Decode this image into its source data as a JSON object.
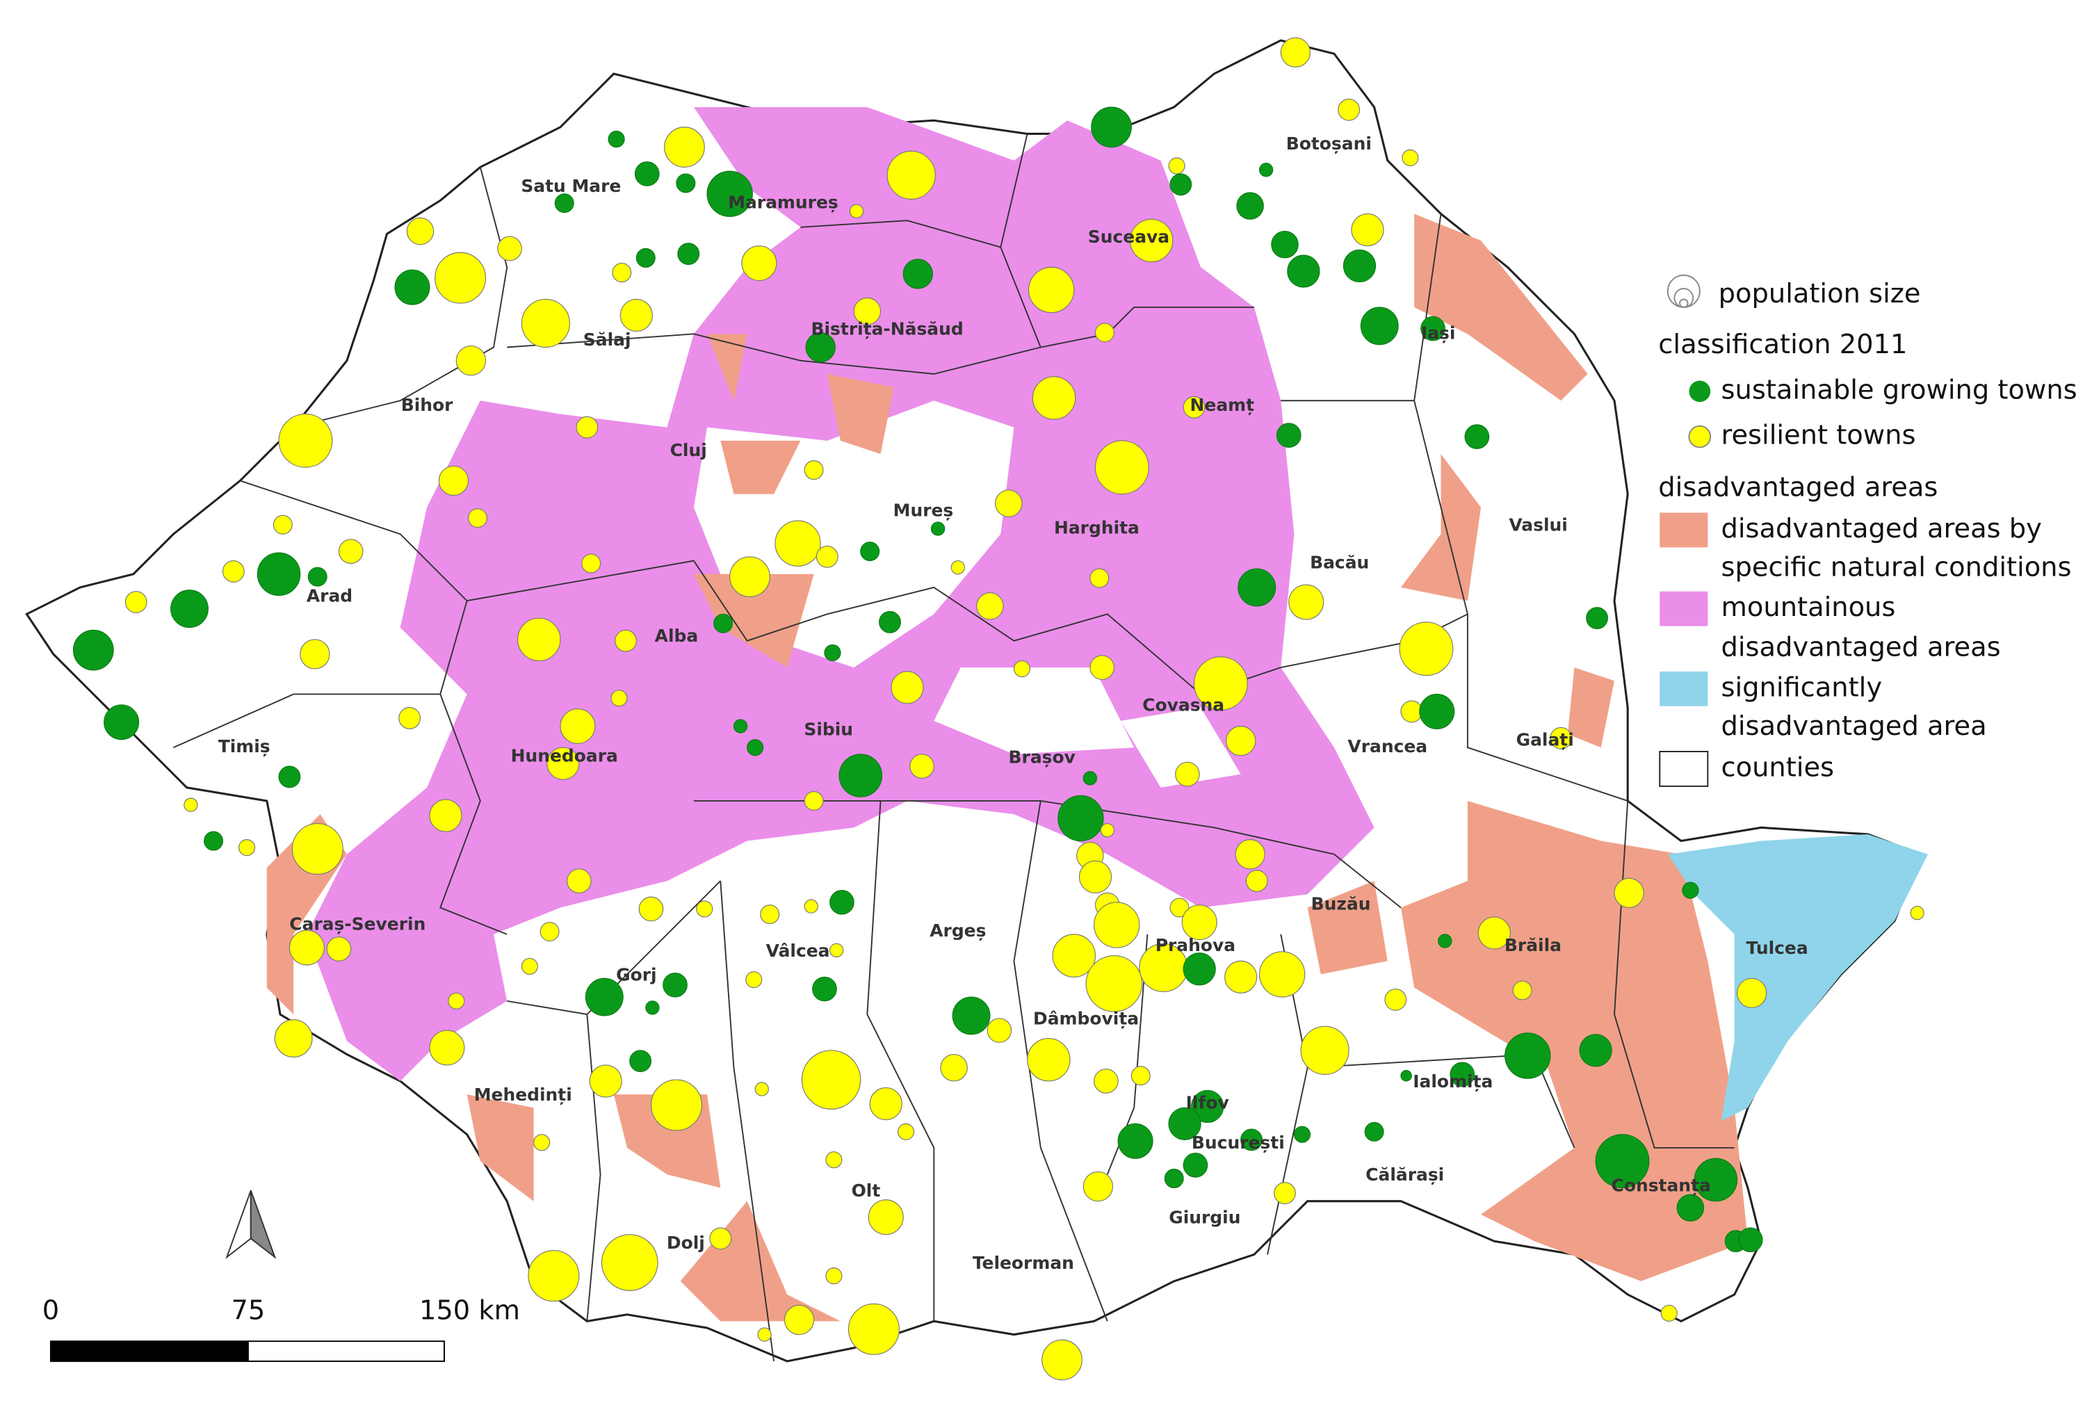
{
  "map": {
    "counties": [
      "Satu Mare",
      "Maramureș",
      "Botoșani",
      "Suceava",
      "Sălaj",
      "Bistrița-Năsăud",
      "Iași",
      "Bihor",
      "Neamț",
      "Cluj",
      "Mureș",
      "Harghita",
      "Vaslui",
      "Arad",
      "Bacău",
      "Alba",
      "Covasna",
      "Sibiu",
      "Timiș",
      "Hunedoara",
      "Vrancea",
      "Galați",
      "Brașov",
      "Buzău",
      "Caraș-Severin",
      "Brăila",
      "Prahova",
      "Tulcea",
      "Vâlcea",
      "Argeș",
      "Gorj",
      "Dâmbovița",
      "Ialomița",
      "Mehedinți",
      "Ilfov",
      "București",
      "Călărași",
      "Constanța",
      "Olt",
      "Giurgiu",
      "Dolj",
      "Teleorman"
    ],
    "legend": [
      "population size",
      "classification 2011",
      "sustainable growing towns",
      "resilient towns",
      "disadvantaged areas",
      "disadvantaged areas by",
      "specific natural conditions",
      "mountainous",
      "disadvantaged areas",
      "significantly",
      "disadvantaged area",
      "counties"
    ],
    "scale": [
      "0",
      "75",
      "150 km"
    ]
  }
}
